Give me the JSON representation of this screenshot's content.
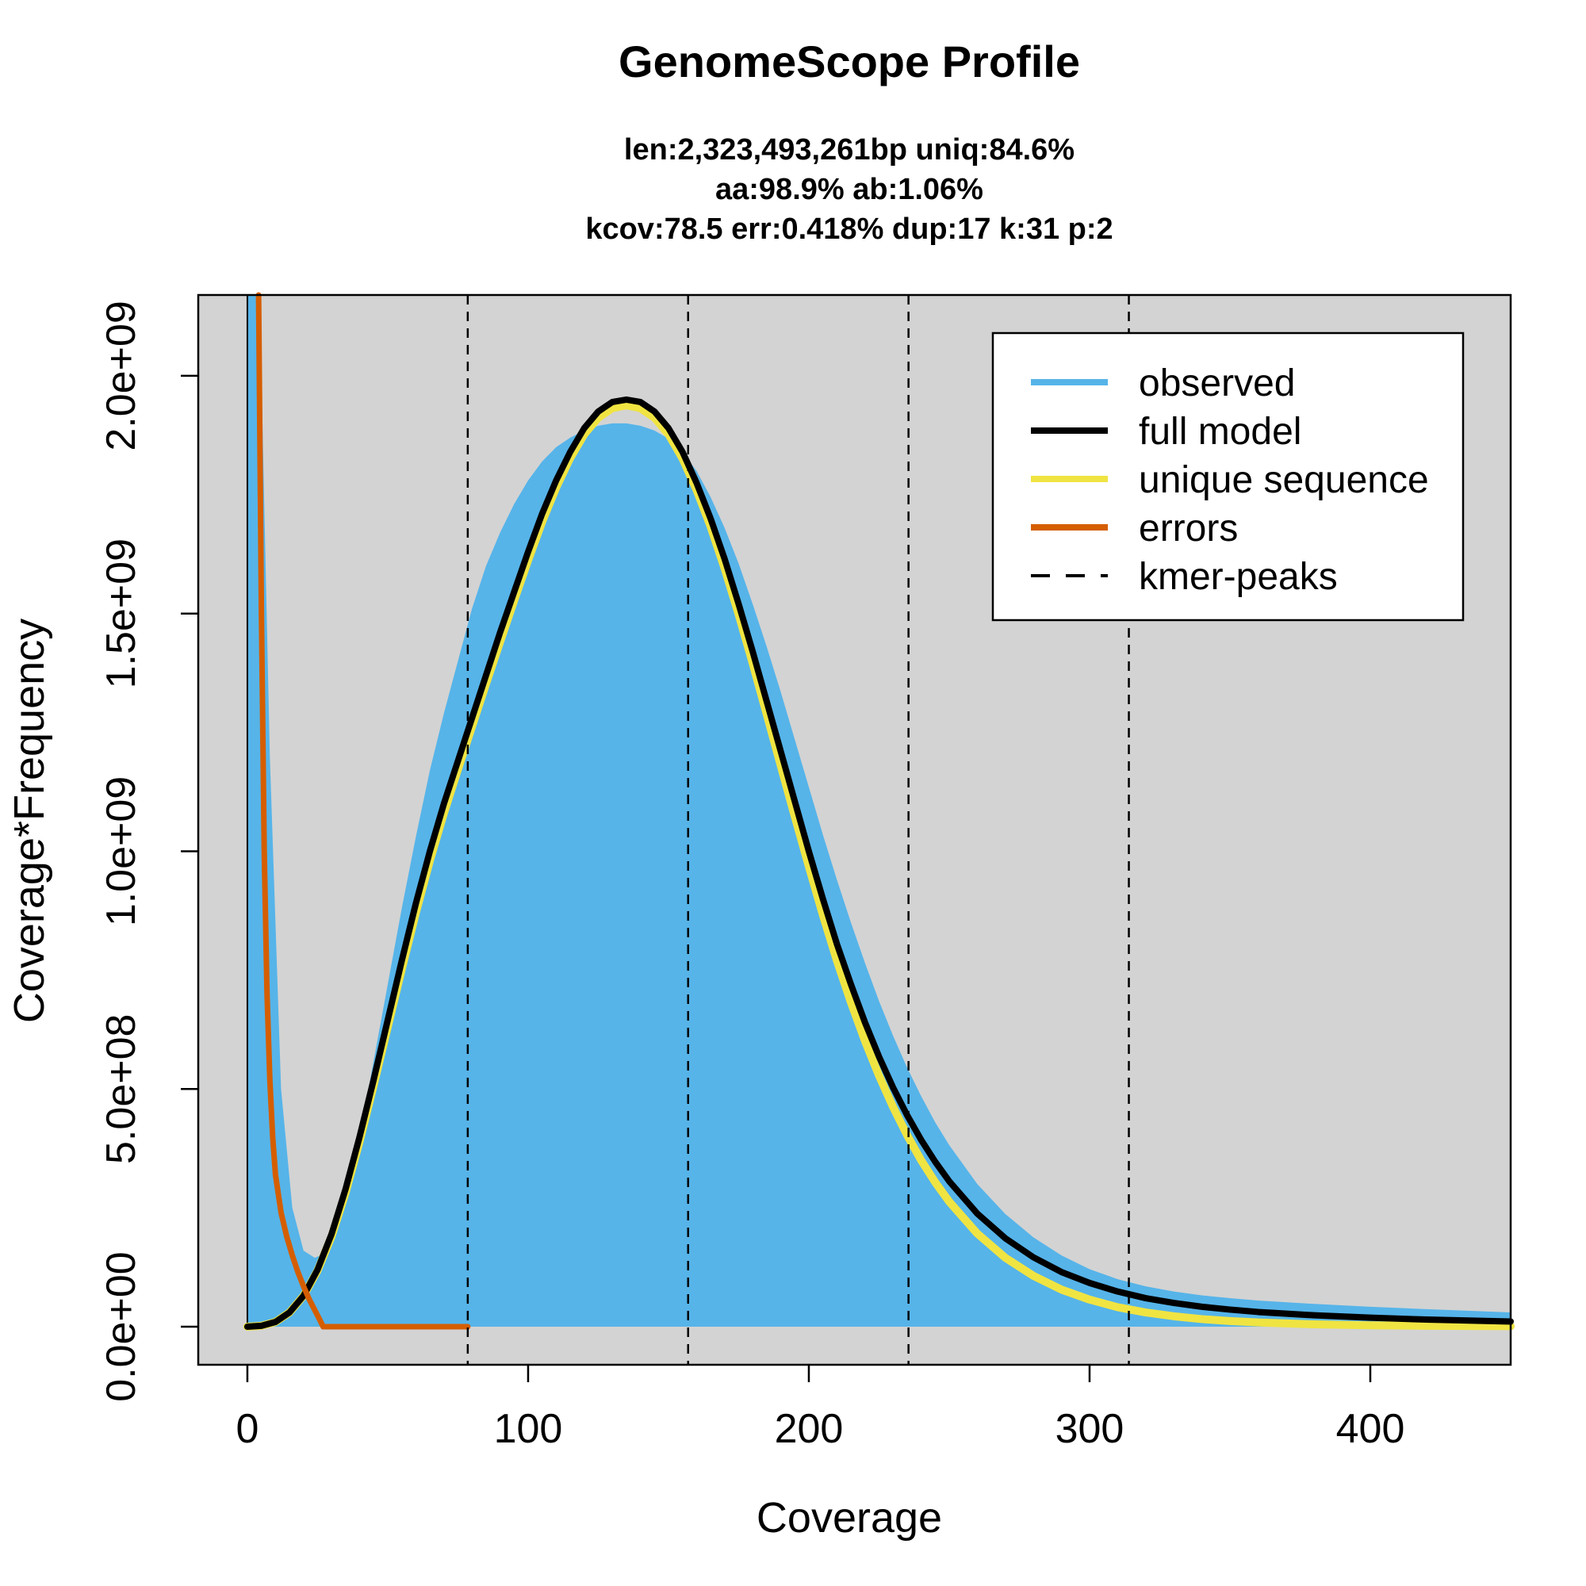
{
  "chart_data": {
    "type": "area",
    "title": "GenomeScope Profile",
    "subtitle_lines": [
      "len:2,323,493,261bp uniq:84.6%",
      "aa:98.9% ab:1.06%",
      "kcov:78.5 err:0.418%  dup:17  k:31 p:2"
    ],
    "xlabel": "Coverage",
    "ylabel": "Coverage*Frequency",
    "xlim": [
      -17.5,
      450
    ],
    "ylim": [
      -80000000,
      2170000000
    ],
    "x_ticks": [
      0,
      100,
      200,
      300,
      400
    ],
    "x_tick_labels": [
      "0",
      "100",
      "200",
      "300",
      "400"
    ],
    "y_ticks": [
      0,
      500000000,
      1000000000,
      1500000000,
      2000000000
    ],
    "y_tick_labels": [
      "0.0e+00",
      "5.0e+08",
      "1.0e+09",
      "1.5e+09",
      "2.0e+09"
    ],
    "background_color": "#d3d3d3",
    "legend": {
      "position": "top-right",
      "entries": [
        {
          "label": "observed",
          "color": "#56b4e9",
          "style": "solid"
        },
        {
          "label": "full model",
          "color": "#000000",
          "style": "solid"
        },
        {
          "label": "unique sequence",
          "color": "#f0e442",
          "style": "solid"
        },
        {
          "label": "errors",
          "color": "#d55e00",
          "style": "solid"
        },
        {
          "label": "kmer-peaks",
          "color": "#000000",
          "style": "dashed"
        }
      ]
    },
    "kmer_peaks": [
      78.5,
      157,
      235.5,
      314
    ],
    "series": [
      {
        "name": "observed",
        "color": "#56b4e9",
        "x": [
          0,
          1,
          2,
          3,
          5,
          8,
          12,
          16,
          20,
          24,
          28,
          32,
          36,
          40,
          45,
          50,
          55,
          60,
          65,
          70,
          75,
          80,
          85,
          90,
          95,
          100,
          105,
          110,
          115,
          120,
          125,
          130,
          135,
          140,
          145,
          150,
          155,
          160,
          165,
          170,
          175,
          180,
          185,
          190,
          195,
          200,
          205,
          210,
          215,
          220,
          225,
          230,
          235,
          240,
          245,
          250,
          260,
          270,
          280,
          290,
          300,
          310,
          320,
          330,
          340,
          350,
          360,
          380,
          400,
          420,
          450
        ],
        "y": [
          2170000000,
          2170000000,
          2170000000,
          2170000000,
          2000000000,
          1200000000,
          500000000,
          250000000,
          160000000,
          145000000,
          155000000,
          210000000,
          300000000,
          400000000,
          560000000,
          720000000,
          880000000,
          1030000000,
          1170000000,
          1290000000,
          1400000000,
          1510000000,
          1600000000,
          1670000000,
          1730000000,
          1780000000,
          1820000000,
          1850000000,
          1870000000,
          1885000000,
          1895000000,
          1900000000,
          1900000000,
          1895000000,
          1885000000,
          1868000000,
          1840000000,
          1800000000,
          1745000000,
          1680000000,
          1605000000,
          1520000000,
          1430000000,
          1335000000,
          1235000000,
          1135000000,
          1035000000,
          940000000,
          850000000,
          765000000,
          685000000,
          612000000,
          545000000,
          485000000,
          430000000,
          382000000,
          300000000,
          237000000,
          188000000,
          150000000,
          121000000,
          100000000,
          85000000,
          74000000,
          66000000,
          60000000,
          55000000,
          48000000,
          42000000,
          37000000,
          30000000
        ]
      },
      {
        "name": "full model",
        "color": "#000000",
        "x": [
          0,
          5,
          10,
          15,
          20,
          25,
          30,
          35,
          40,
          45,
          50,
          55,
          60,
          65,
          70,
          75,
          80,
          85,
          90,
          95,
          100,
          105,
          110,
          115,
          120,
          125,
          130,
          135,
          140,
          145,
          150,
          155,
          160,
          165,
          170,
          175,
          180,
          185,
          190,
          195,
          200,
          205,
          210,
          215,
          220,
          225,
          230,
          235,
          240,
          245,
          250,
          260,
          270,
          280,
          290,
          300,
          310,
          320,
          330,
          340,
          350,
          360,
          380,
          400,
          420,
          450
        ],
        "y": [
          0,
          2000000,
          10000000,
          30000000,
          65000000,
          120000000,
          195000000,
          290000000,
          400000000,
          520000000,
          645000000,
          770000000,
          890000000,
          1000000000,
          1100000000,
          1190000000,
          1280000000,
          1370000000,
          1460000000,
          1545000000,
          1630000000,
          1710000000,
          1780000000,
          1840000000,
          1890000000,
          1925000000,
          1945000000,
          1950000000,
          1945000000,
          1925000000,
          1890000000,
          1840000000,
          1775000000,
          1700000000,
          1615000000,
          1520000000,
          1420000000,
          1315000000,
          1210000000,
          1105000000,
          1000000000,
          900000000,
          805000000,
          720000000,
          640000000,
          568000000,
          503000000,
          445000000,
          393000000,
          347000000,
          306000000,
          238000000,
          186000000,
          146000000,
          115000000,
          92000000,
          74000000,
          60000000,
          50000000,
          42000000,
          36000000,
          31000000,
          24000000,
          19000000,
          15000000,
          11000000
        ]
      },
      {
        "name": "unique sequence",
        "color": "#f0e442",
        "x": [
          0,
          5,
          10,
          15,
          20,
          25,
          30,
          35,
          40,
          45,
          50,
          55,
          60,
          65,
          70,
          75,
          80,
          85,
          90,
          95,
          100,
          105,
          110,
          115,
          120,
          125,
          130,
          135,
          140,
          145,
          150,
          155,
          160,
          165,
          170,
          175,
          180,
          185,
          190,
          195,
          200,
          205,
          210,
          215,
          220,
          225,
          230,
          235,
          240,
          245,
          250,
          260,
          270,
          280,
          290,
          300,
          310,
          320,
          330,
          340,
          350,
          360,
          380,
          400,
          420,
          450
        ],
        "y": [
          0,
          2000000,
          10000000,
          30000000,
          65000000,
          118000000,
          190000000,
          282000000,
          390000000,
          508000000,
          630000000,
          752000000,
          870000000,
          980000000,
          1080000000,
          1172000000,
          1262000000,
          1352000000,
          1440000000,
          1527000000,
          1612000000,
          1693000000,
          1765000000,
          1827000000,
          1877000000,
          1912000000,
          1932000000,
          1938000000,
          1932000000,
          1912000000,
          1877000000,
          1826000000,
          1760000000,
          1683000000,
          1595000000,
          1498000000,
          1395000000,
          1288000000,
          1180000000,
          1073000000,
          968000000,
          866000000,
          770000000,
          682000000,
          601000000,
          528000000,
          462000000,
          403000000,
          350000000,
          304000000,
          263000000,
          196000000,
          145000000,
          107000000,
          78000000,
          57000000,
          41000000,
          30000000,
          22000000,
          16000000,
          12000000,
          9000000,
          5000000,
          3000000,
          2000000,
          1000000
        ]
      },
      {
        "name": "errors",
        "color": "#d55e00",
        "x": [
          4,
          5,
          6,
          7,
          8,
          9,
          10,
          12,
          14,
          16,
          18,
          20,
          22,
          24,
          26,
          27,
          30,
          40,
          50,
          60,
          70,
          78.5
        ],
        "y": [
          2170000000,
          1500000000,
          1000000000,
          700000000,
          520000000,
          400000000,
          320000000,
          240000000,
          190000000,
          150000000,
          115000000,
          85000000,
          58000000,
          35000000,
          12000000,
          0,
          0,
          0,
          0,
          0,
          0,
          0
        ]
      }
    ]
  }
}
